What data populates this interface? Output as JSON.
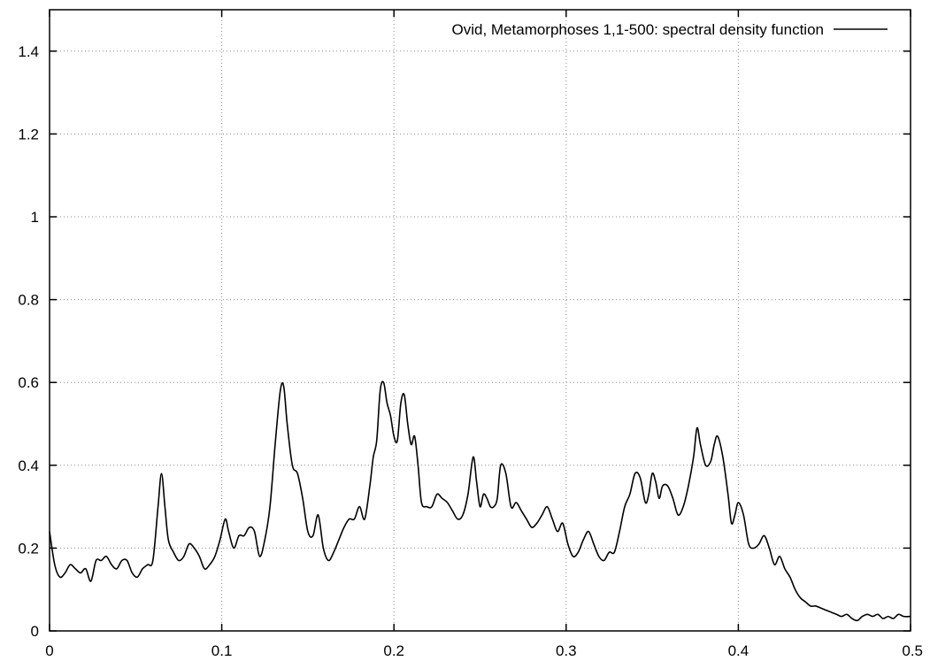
{
  "chart_data": {
    "type": "line",
    "title": "",
    "xlabel": "",
    "ylabel": "",
    "xlim": [
      0,
      0.5
    ],
    "ylim": [
      0,
      1.5
    ],
    "xticks": [
      0,
      0.1,
      0.2,
      0.3,
      0.4,
      0.5
    ],
    "xtick_labels": [
      "0",
      "0.1",
      "0.2",
      "0.3",
      "0.4",
      "0.5"
    ],
    "yticks": [
      0,
      0.2,
      0.4,
      0.6,
      0.8,
      1,
      1.2,
      1.4
    ],
    "ytick_labels": [
      "0",
      "0.2",
      "0.4",
      "0.6",
      "0.8",
      "1",
      "1.2",
      "1.4"
    ],
    "grid": true,
    "legend_position": "top-right",
    "colors": {
      "line": "#000000",
      "grid": "#8a8a8a"
    },
    "series": [
      {
        "name": "Ovid, Metamorphoses 1,1-500: spectral density function",
        "x": [
          0,
          0.003,
          0.006,
          0.009,
          0.012,
          0.015,
          0.018,
          0.021,
          0.024,
          0.027,
          0.03,
          0.033,
          0.036,
          0.039,
          0.042,
          0.045,
          0.048,
          0.051,
          0.054,
          0.057,
          0.06,
          0.063,
          0.065,
          0.067,
          0.069,
          0.072,
          0.075,
          0.078,
          0.081,
          0.084,
          0.087,
          0.09,
          0.093,
          0.096,
          0.099,
          0.102,
          0.104,
          0.107,
          0.11,
          0.113,
          0.116,
          0.119,
          0.122,
          0.125,
          0.128,
          0.131,
          0.134,
          0.136,
          0.138,
          0.141,
          0.144,
          0.147,
          0.15,
          0.153,
          0.156,
          0.159,
          0.162,
          0.165,
          0.168,
          0.171,
          0.174,
          0.177,
          0.18,
          0.183,
          0.186,
          0.188,
          0.19,
          0.192,
          0.194,
          0.196,
          0.198,
          0.2,
          0.202,
          0.204,
          0.206,
          0.208,
          0.21,
          0.212,
          0.214,
          0.216,
          0.219,
          0.222,
          0.225,
          0.228,
          0.231,
          0.234,
          0.237,
          0.24,
          0.243,
          0.246,
          0.248,
          0.25,
          0.252,
          0.254,
          0.256,
          0.258,
          0.26,
          0.262,
          0.265,
          0.268,
          0.271,
          0.274,
          0.277,
          0.28,
          0.283,
          0.286,
          0.289,
          0.292,
          0.295,
          0.298,
          0.301,
          0.304,
          0.307,
          0.31,
          0.313,
          0.316,
          0.319,
          0.322,
          0.325,
          0.328,
          0.331,
          0.334,
          0.337,
          0.34,
          0.343,
          0.346,
          0.348,
          0.35,
          0.352,
          0.354,
          0.356,
          0.359,
          0.362,
          0.365,
          0.368,
          0.371,
          0.374,
          0.376,
          0.378,
          0.381,
          0.384,
          0.386,
          0.388,
          0.391,
          0.394,
          0.396,
          0.398,
          0.4,
          0.403,
          0.406,
          0.409,
          0.412,
          0.415,
          0.418,
          0.421,
          0.424,
          0.427,
          0.43,
          0.433,
          0.436,
          0.439,
          0.442,
          0.445,
          0.448,
          0.451,
          0.454,
          0.457,
          0.46,
          0.463,
          0.466,
          0.469,
          0.472,
          0.475,
          0.478,
          0.481,
          0.484,
          0.487,
          0.49,
          0.493,
          0.496,
          0.5
        ],
        "values": [
          0.24,
          0.16,
          0.13,
          0.14,
          0.16,
          0.15,
          0.14,
          0.15,
          0.12,
          0.17,
          0.17,
          0.18,
          0.16,
          0.15,
          0.17,
          0.17,
          0.14,
          0.13,
          0.15,
          0.16,
          0.17,
          0.3,
          0.38,
          0.3,
          0.22,
          0.19,
          0.17,
          0.18,
          0.21,
          0.2,
          0.18,
          0.15,
          0.16,
          0.18,
          0.22,
          0.27,
          0.24,
          0.2,
          0.23,
          0.23,
          0.25,
          0.24,
          0.18,
          0.22,
          0.3,
          0.45,
          0.58,
          0.59,
          0.5,
          0.4,
          0.38,
          0.32,
          0.24,
          0.23,
          0.28,
          0.2,
          0.17,
          0.19,
          0.22,
          0.25,
          0.27,
          0.27,
          0.3,
          0.27,
          0.35,
          0.42,
          0.46,
          0.58,
          0.6,
          0.55,
          0.52,
          0.47,
          0.46,
          0.55,
          0.57,
          0.5,
          0.45,
          0.47,
          0.4,
          0.31,
          0.3,
          0.3,
          0.33,
          0.32,
          0.31,
          0.29,
          0.27,
          0.28,
          0.33,
          0.42,
          0.36,
          0.3,
          0.33,
          0.32,
          0.3,
          0.3,
          0.32,
          0.4,
          0.38,
          0.3,
          0.31,
          0.29,
          0.27,
          0.25,
          0.26,
          0.28,
          0.3,
          0.27,
          0.24,
          0.26,
          0.21,
          0.18,
          0.19,
          0.22,
          0.24,
          0.21,
          0.18,
          0.17,
          0.19,
          0.19,
          0.24,
          0.3,
          0.33,
          0.38,
          0.37,
          0.31,
          0.33,
          0.38,
          0.36,
          0.32,
          0.35,
          0.35,
          0.32,
          0.28,
          0.3,
          0.35,
          0.42,
          0.49,
          0.45,
          0.4,
          0.41,
          0.45,
          0.47,
          0.42,
          0.33,
          0.26,
          0.28,
          0.31,
          0.28,
          0.21,
          0.2,
          0.21,
          0.23,
          0.2,
          0.16,
          0.18,
          0.15,
          0.13,
          0.1,
          0.08,
          0.07,
          0.06,
          0.06,
          0.055,
          0.05,
          0.045,
          0.04,
          0.035,
          0.04,
          0.03,
          0.025,
          0.035,
          0.04,
          0.035,
          0.04,
          0.03,
          0.035,
          0.03,
          0.04,
          0.035,
          0.035
        ]
      }
    ]
  }
}
